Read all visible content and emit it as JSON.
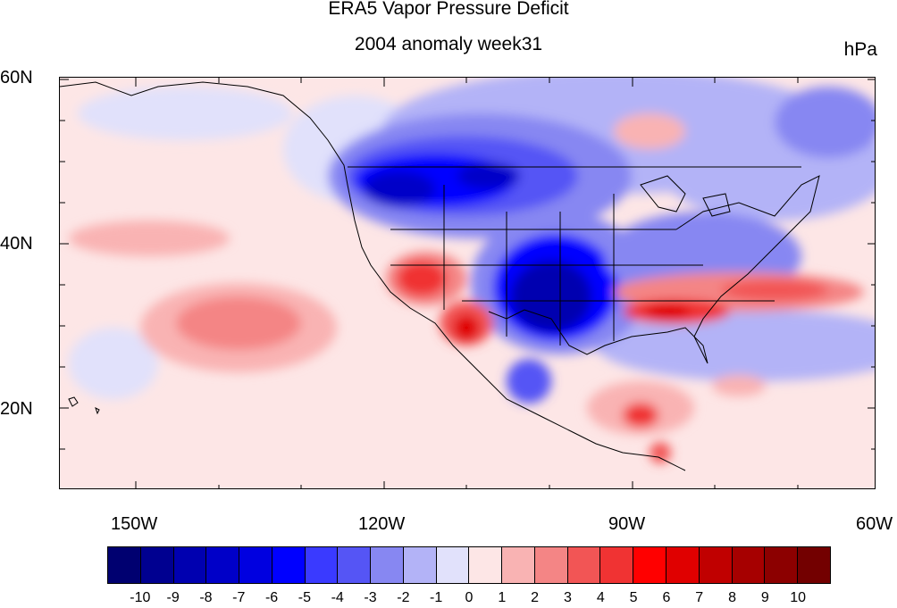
{
  "title": "ERA5 Vapor Pressure Deficit",
  "subtitle": "2004 anomaly week31",
  "units": "hPa",
  "lat_labels": [
    "60N",
    "40N",
    "20N"
  ],
  "lon_labels": [
    "150W",
    "120W",
    "90W",
    "60W"
  ],
  "colorbar": {
    "labels": [
      "-10",
      "-9",
      "-8",
      "-7",
      "-6",
      "-5",
      "-4",
      "-3",
      "-2",
      "-1",
      "0",
      "1",
      "2",
      "3",
      "4",
      "5",
      "6",
      "7",
      "8",
      "9",
      "10"
    ],
    "colors": [
      "#000070",
      "#000090",
      "#0000b0",
      "#0000c8",
      "#0000e0",
      "#0000ff",
      "#3a3aff",
      "#5555f5",
      "#8787f2",
      "#b3b3f7",
      "#e1e1fb",
      "#fde6e6",
      "#f9b3b3",
      "#f48585",
      "#f25555",
      "#f03333",
      "#ff0000",
      "#e00000",
      "#c00000",
      "#a60000",
      "#8c0000",
      "#730000"
    ]
  },
  "map": {
    "region": "North America and eastern Pacific",
    "lat_range": [
      10,
      60
    ],
    "lon_range": [
      -160,
      -60
    ],
    "variable": "Vapor Pressure Deficit anomaly"
  }
}
